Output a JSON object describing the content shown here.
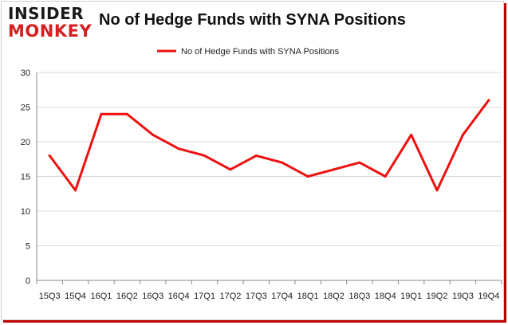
{
  "logo": {
    "top": "INSIDER",
    "bottom": "MONKEY"
  },
  "colors": {
    "line": "#ee1111",
    "grid": "#d9d9d9",
    "axis": "#888888"
  },
  "chart_data": {
    "type": "line",
    "title": "No of Hedge Funds with SYNA Positions",
    "legend": "top-center",
    "grid": true,
    "categories": [
      "15Q3",
      "15Q4",
      "16Q1",
      "16Q2",
      "16Q3",
      "16Q4",
      "17Q1",
      "17Q2",
      "17Q3",
      "17Q4",
      "18Q1",
      "18Q2",
      "18Q3",
      "18Q4",
      "19Q1",
      "19Q2",
      "19Q3",
      "19Q4"
    ],
    "series": [
      {
        "name": "No of Hedge Funds with SYNA Positions",
        "values": [
          18,
          13,
          24,
          24,
          21,
          19,
          18,
          16,
          18,
          17,
          15,
          16,
          17,
          15,
          21,
          13,
          21,
          26
        ]
      }
    ],
    "ylim": [
      0,
      30
    ],
    "yticks": [
      0,
      5,
      10,
      15,
      20,
      25,
      30
    ]
  }
}
